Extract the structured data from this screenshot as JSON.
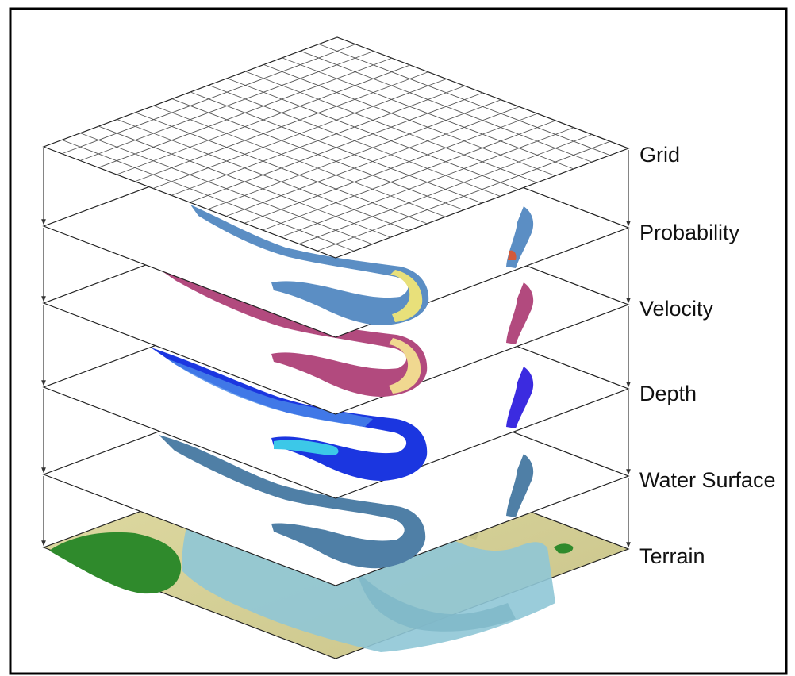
{
  "layers": [
    {
      "id": "grid",
      "label": "Grid"
    },
    {
      "id": "probability",
      "label": "Probability"
    },
    {
      "id": "velocity",
      "label": "Velocity"
    },
    {
      "id": "depth",
      "label": "Depth"
    },
    {
      "id": "water_surface",
      "label": "Water Surface"
    },
    {
      "id": "terrain",
      "label": "Terrain"
    }
  ],
  "colors": {
    "frame": "#000000",
    "outline": "#222222",
    "grid_line": "#555555",
    "arrow": "#333333",
    "label": "#111111",
    "probability_blue": "#5b8ec4",
    "probability_yellow": "#e8e07a",
    "probability_red": "#d25a3a",
    "velocity_magenta": "#b24a7e",
    "velocity_yellow": "#f0d890",
    "depth_blue": "#1b36e0",
    "depth_cyan": "#3cc8e8",
    "water_steel": "#4f7fa6",
    "terrain_tan": "#d7d29a",
    "terrain_water": "#8fc6d6",
    "terrain_green": "#2f8a2c"
  }
}
